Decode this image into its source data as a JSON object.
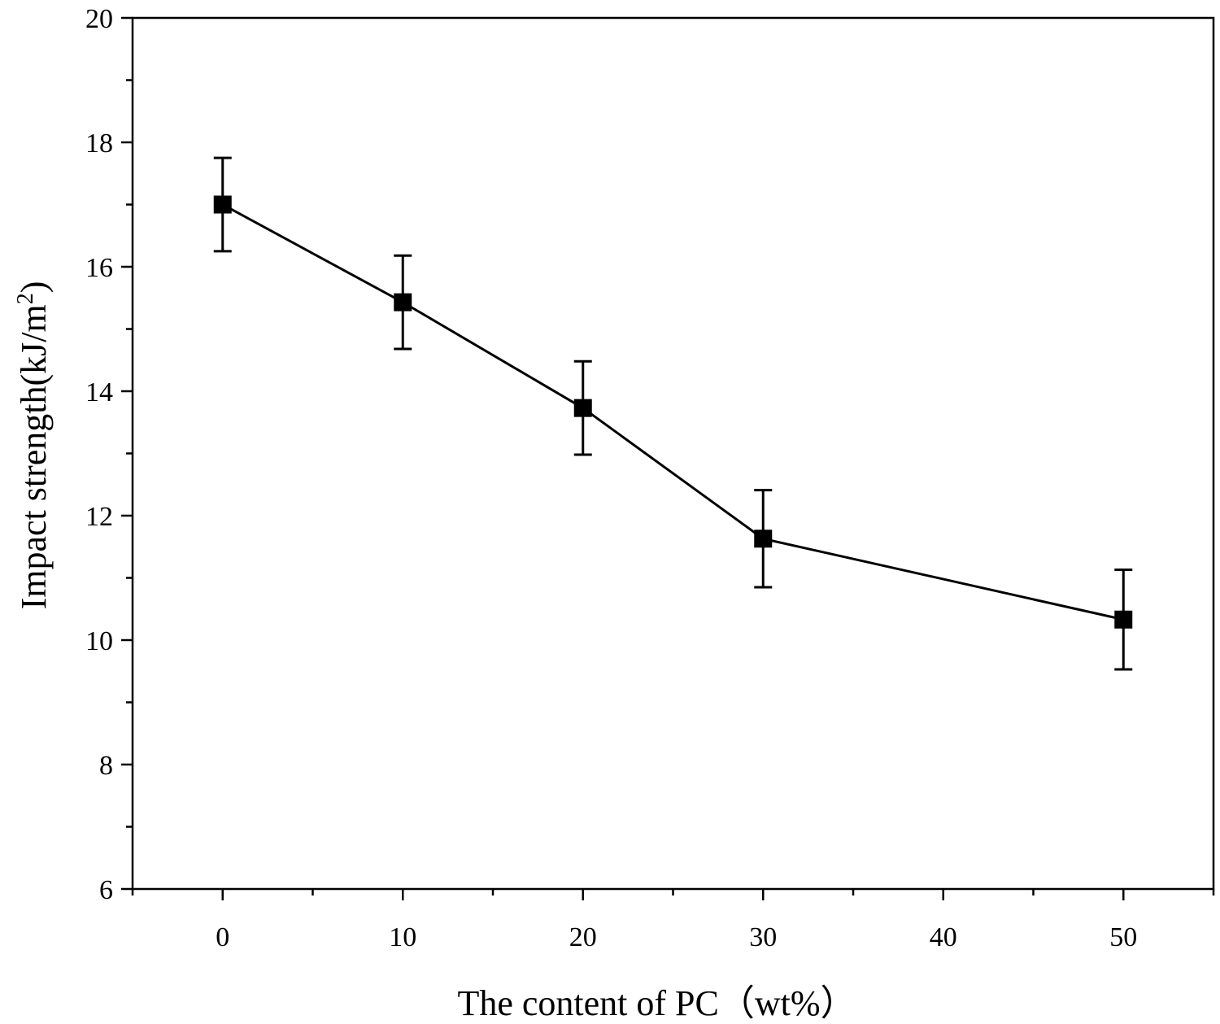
{
  "chart_data": {
    "type": "line",
    "title": "",
    "xlabel": "The content of PC（wt%）",
    "ylabel": "Impact strength(kJ/m",
    "ylabel_superscript": "2",
    "ylabel_close": ")",
    "xlim": [
      -5,
      55
    ],
    "ylim": [
      6,
      20
    ],
    "x_ticks": [
      0,
      10,
      20,
      30,
      40,
      50
    ],
    "y_ticks": [
      6,
      8,
      10,
      12,
      14,
      16,
      18,
      20
    ],
    "x_minor_step": 5,
    "y_minor_step": 1,
    "grid": false,
    "series": [
      {
        "name": "Impact strength",
        "marker": "square",
        "x": [
          0,
          10,
          20,
          30,
          50
        ],
        "values": [
          17.0,
          15.43,
          13.73,
          11.63,
          10.33
        ],
        "error": [
          0.75,
          0.75,
          0.75,
          0.78,
          0.8
        ]
      }
    ]
  }
}
